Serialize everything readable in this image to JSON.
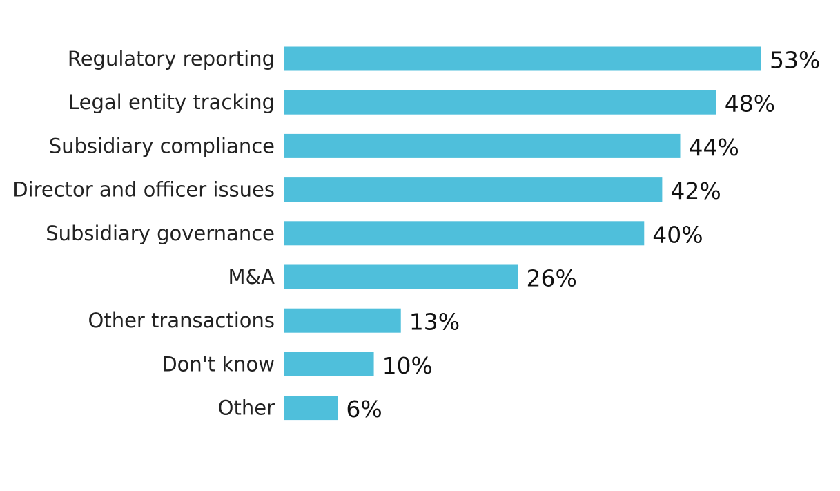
{
  "chart_data": {
    "type": "bar",
    "orientation": "horizontal",
    "title": "",
    "xlabel": "",
    "ylabel": "",
    "grid": false,
    "legend": "none",
    "color": "#4FBFDB",
    "xlim": [
      0,
      53
    ],
    "categories": [
      "Regulatory reporting",
      "Legal entity tracking",
      "Subsidiary compliance",
      "Director and officer issues",
      "Subsidiary governance",
      "M&A",
      "Other transactions",
      "Don't know",
      "Other"
    ],
    "values": [
      53,
      48,
      44,
      42,
      40,
      26,
      13,
      10,
      6
    ],
    "data_labels": [
      "53%",
      "48%",
      "44%",
      "42%",
      "40%",
      "26%",
      "13%",
      "10%",
      "6%"
    ]
  }
}
